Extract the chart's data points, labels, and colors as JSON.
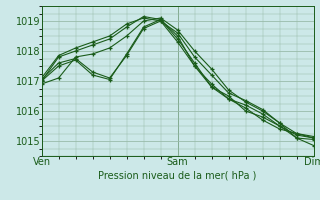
{
  "xlabel": "Pression niveau de la mer( hPa )",
  "bg_color": "#cce8e8",
  "grid_color": "#99bbaa",
  "line_color": "#1a5c1a",
  "ylim": [
    1014.5,
    1019.5
  ],
  "xlim": [
    0,
    48
  ],
  "yticks": [
    1015,
    1016,
    1017,
    1018,
    1019
  ],
  "xtick_positions": [
    0,
    24,
    48
  ],
  "xtick_labels": [
    "Ven",
    "Sam",
    "Dim"
  ],
  "lines": [
    {
      "x": [
        0,
        3,
        6,
        9,
        12,
        15,
        18,
        21,
        24,
        27,
        30,
        33,
        36,
        39,
        42,
        45,
        48
      ],
      "y": [
        1016.9,
        1017.1,
        1017.8,
        1017.9,
        1018.1,
        1018.5,
        1019.0,
        1019.1,
        1018.7,
        1018.0,
        1017.4,
        1016.7,
        1016.3,
        1016.0,
        1015.6,
        1015.1,
        1015.05
      ]
    },
    {
      "x": [
        0,
        3,
        6,
        9,
        12,
        15,
        18,
        21,
        24,
        27,
        30,
        33,
        36,
        39,
        42,
        45,
        48
      ],
      "y": [
        1017.0,
        1017.8,
        1018.0,
        1018.2,
        1018.4,
        1018.8,
        1019.15,
        1019.05,
        1018.5,
        1017.5,
        1016.9,
        1016.4,
        1016.2,
        1015.9,
        1015.5,
        1015.2,
        1015.1
      ]
    },
    {
      "x": [
        0,
        3,
        6,
        9,
        12,
        15,
        18,
        21,
        24,
        27,
        30,
        33,
        36,
        39,
        42,
        45,
        48
      ],
      "y": [
        1017.0,
        1017.5,
        1017.7,
        1017.2,
        1017.05,
        1017.9,
        1018.8,
        1019.05,
        1018.4,
        1017.6,
        1016.8,
        1016.5,
        1016.0,
        1015.8,
        1015.5,
        1015.1,
        1014.85
      ]
    },
    {
      "x": [
        0,
        3,
        6,
        9,
        12,
        15,
        18,
        21,
        24,
        27,
        30,
        33,
        36,
        39,
        42,
        45,
        48
      ],
      "y": [
        1017.05,
        1017.6,
        1017.75,
        1017.3,
        1017.1,
        1017.85,
        1018.75,
        1019.0,
        1018.3,
        1017.5,
        1016.8,
        1016.4,
        1016.1,
        1015.7,
        1015.4,
        1015.25,
        1015.15
      ]
    },
    {
      "x": [
        0,
        3,
        6,
        9,
        12,
        15,
        18,
        21,
        24,
        27,
        30,
        33,
        36,
        39,
        42,
        45,
        48
      ],
      "y": [
        1017.1,
        1017.85,
        1018.1,
        1018.3,
        1018.5,
        1018.9,
        1019.1,
        1019.0,
        1018.6,
        1017.8,
        1017.2,
        1016.6,
        1016.35,
        1016.05,
        1015.6,
        1015.25,
        1015.1
      ]
    }
  ]
}
